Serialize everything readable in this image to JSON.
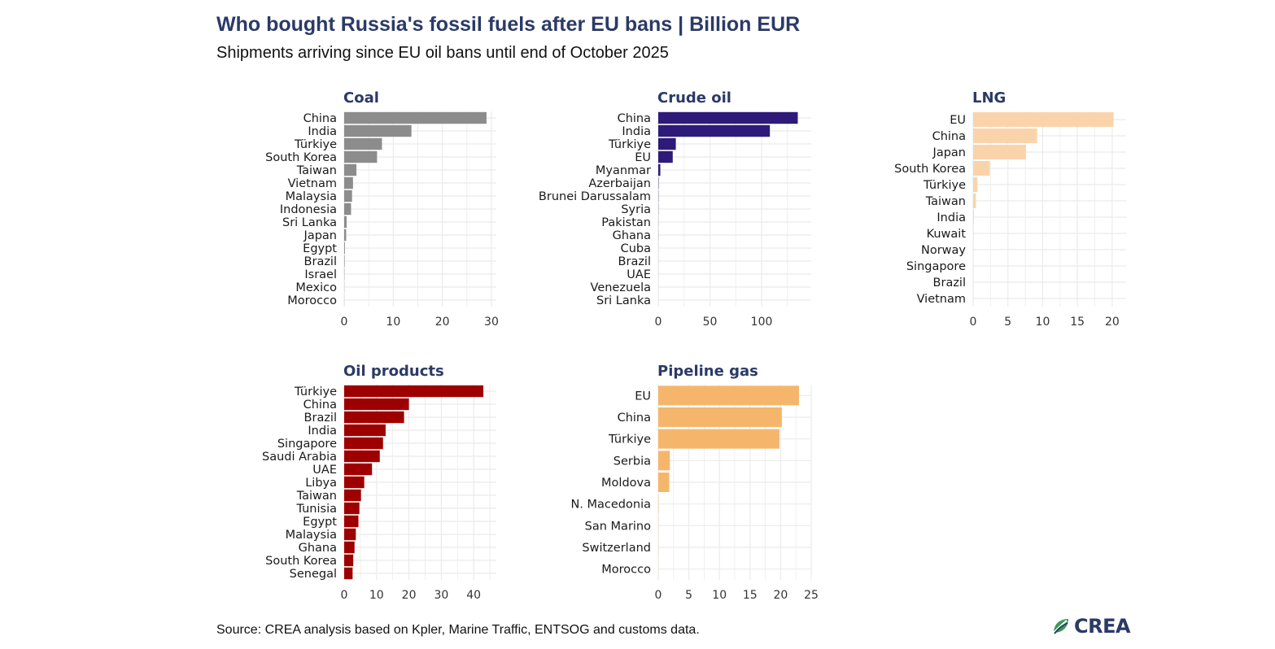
{
  "title": "Who bought Russia's fossil fuels after EU bans | Billion EUR",
  "subtitle": "Shipments arriving since EU oil bans until end of October 2025",
  "source": "Source: CREA analysis based on Kpler, Marine Traffic, ENTSOG and customs data.",
  "logo": {
    "text": "CREA",
    "icon": "crea-leaf-icon"
  },
  "colors": {
    "title": "#2b3a67",
    "grid": "#ebebeb"
  },
  "chart_data": [
    {
      "type": "bar",
      "orientation": "horizontal",
      "title": "Coal",
      "color": "#8c8c8c",
      "xlim": [
        0,
        31
      ],
      "ticks": [
        0,
        10,
        20,
        30
      ],
      "categories": [
        "China",
        "India",
        "Türkiye",
        "South Korea",
        "Taiwan",
        "Vietnam",
        "Malaysia",
        "Indonesia",
        "Sri Lanka",
        "Japan",
        "Egypt",
        "Brazil",
        "Israel",
        "Mexico",
        "Morocco"
      ],
      "values": [
        29,
        13.7,
        7.7,
        6.7,
        2.5,
        1.8,
        1.6,
        1.4,
        0.5,
        0.4,
        0.15,
        0.1,
        0.05,
        0.03,
        0.02
      ]
    },
    {
      "type": "bar",
      "orientation": "horizontal",
      "title": "Crude oil",
      "color": "#2e1a78",
      "xlim": [
        0,
        148
      ],
      "ticks": [
        0,
        50,
        100
      ],
      "categories": [
        "China",
        "India",
        "Türkiye",
        "EU",
        "Myanmar",
        "Azerbaijan",
        "Brunei Darussalam",
        "Syria",
        "Pakistan",
        "Ghana",
        "Cuba",
        "Brazil",
        "UAE",
        "Venezuela",
        "Sri Lanka"
      ],
      "values": [
        135,
        108,
        17,
        14,
        2,
        0.3,
        0.2,
        0.15,
        0.1,
        0.1,
        0.05,
        0.05,
        0.03,
        0.02,
        0.01
      ]
    },
    {
      "type": "bar",
      "orientation": "horizontal",
      "title": "LNG",
      "color": "#f9d4ab",
      "xlim": [
        0,
        22
      ],
      "ticks": [
        0,
        5,
        10,
        15,
        20
      ],
      "categories": [
        "EU",
        "China",
        "Japan",
        "South Korea",
        "Türkiye",
        "Taiwan",
        "India",
        "Kuwait",
        "Norway",
        "Singapore",
        "Brazil",
        "Vietnam"
      ],
      "values": [
        20.2,
        9.2,
        7.6,
        2.4,
        0.6,
        0.4,
        0.1,
        0.05,
        0.04,
        0.03,
        0.02,
        0.01
      ]
    },
    {
      "type": "bar",
      "orientation": "horizontal",
      "title": "Oil products",
      "color": "#9e0000",
      "xlim": [
        0,
        47
      ],
      "ticks": [
        0,
        10,
        20,
        30,
        40
      ],
      "categories": [
        "Türkiye",
        "China",
        "Brazil",
        "India",
        "Singapore",
        "Saudi Arabia",
        "UAE",
        "Libya",
        "Taiwan",
        "Tunisia",
        "Egypt",
        "Malaysia",
        "Ghana",
        "South Korea",
        "Senegal"
      ],
      "values": [
        43,
        20,
        18.5,
        12.8,
        12,
        11,
        8.6,
        6.2,
        5.2,
        4.7,
        4.4,
        3.6,
        3.2,
        2.8,
        2.6
      ]
    },
    {
      "type": "bar",
      "orientation": "horizontal",
      "title": "Pipeline gas",
      "color": "#f5b66c",
      "xlim": [
        0,
        25
      ],
      "ticks": [
        0,
        5,
        10,
        15,
        20,
        25
      ],
      "categories": [
        "EU",
        "China",
        "Türkiye",
        "Serbia",
        "Moldova",
        "N. Macedonia",
        "San Marino",
        "Switzerland",
        "Morocco"
      ],
      "values": [
        23,
        20.2,
        19.8,
        1.9,
        1.8,
        0.05,
        0.03,
        0.02,
        0.01
      ]
    }
  ]
}
